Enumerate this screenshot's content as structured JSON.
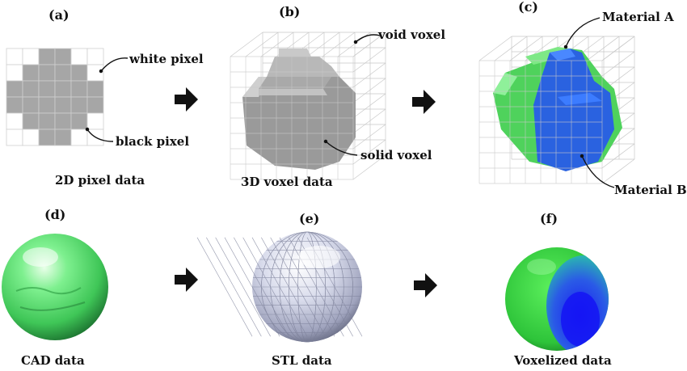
{
  "figure": {
    "panels": {
      "a": {
        "label": "(a)",
        "caption": "2D pixel data",
        "annotations": {
          "white": "white pixel",
          "black": "black pixel"
        }
      },
      "b": {
        "label": "(b)",
        "caption": "3D voxel data",
        "annotations": {
          "void": "void voxel",
          "solid": "solid voxel"
        }
      },
      "c": {
        "label": "(c)",
        "annotations": {
          "material_a": "Material A",
          "material_b": "Material B"
        }
      },
      "d": {
        "label": "(d)",
        "caption": "CAD data"
      },
      "e": {
        "label": "(e)",
        "caption": "STL data"
      },
      "f": {
        "label": "(f)",
        "caption": "Voxelized data"
      }
    },
    "colors": {
      "black_pixel": "#a6a6a6",
      "grid_line": "#c8c8c8",
      "arrow": "#111111",
      "material_a": "#4fd25c",
      "material_b": "#2a62e0",
      "cad_sphere": "#5fe07a",
      "stl_sphere": "#d4d7e8",
      "voxelized_outer": "#35d23d",
      "voxelized_inner": "#1a2fe8"
    }
  }
}
